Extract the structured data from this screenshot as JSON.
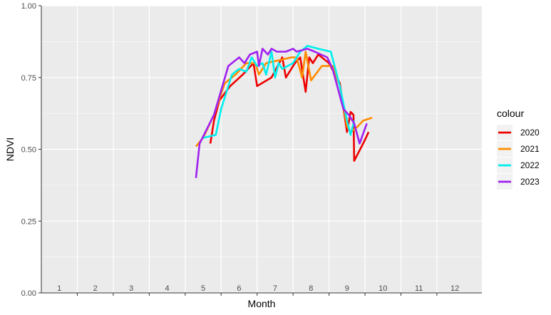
{
  "chart_data": {
    "type": "line",
    "title": "",
    "xlabel": "Month",
    "ylabel": "NDVI",
    "xlim": [
      0.5,
      12.75
    ],
    "ylim": [
      0,
      1
    ],
    "y_ticks": [
      "0.00",
      "0.25",
      "0.50",
      "0.75",
      "1.00"
    ],
    "y_tick_values": [
      0,
      0.25,
      0.5,
      0.75,
      1.0
    ],
    "x_ticks": [
      1,
      2,
      3,
      4,
      5,
      6,
      7,
      8,
      9,
      10,
      11,
      12
    ],
    "x_tick_labels": [
      "1",
      "2",
      "3",
      "4",
      "5",
      "6",
      "7",
      "8",
      "9",
      "10",
      "11",
      "12"
    ],
    "grid": true,
    "legend_title": "colour",
    "legend_position": "right",
    "series": [
      {
        "name": "2020",
        "color": "#ee0000",
        "points": [
          [
            5.2,
            0.52
          ],
          [
            5.3,
            0.6
          ],
          [
            5.45,
            0.67
          ],
          [
            5.75,
            0.72
          ],
          [
            6.1,
            0.76
          ],
          [
            6.4,
            0.8
          ],
          [
            6.5,
            0.72
          ],
          [
            6.9,
            0.75
          ],
          [
            7.2,
            0.82
          ],
          [
            7.3,
            0.75
          ],
          [
            7.55,
            0.8
          ],
          [
            7.7,
            0.82
          ],
          [
            7.85,
            0.7
          ],
          [
            7.95,
            0.82
          ],
          [
            8.05,
            0.8
          ],
          [
            8.2,
            0.83
          ],
          [
            8.5,
            0.8
          ],
          [
            8.8,
            0.73
          ],
          [
            9.0,
            0.56
          ],
          [
            9.1,
            0.63
          ],
          [
            9.18,
            0.62
          ],
          [
            9.2,
            0.46
          ],
          [
            9.45,
            0.52
          ],
          [
            9.6,
            0.56
          ]
        ]
      },
      {
        "name": "2021",
        "color": "#ff8c00",
        "points": [
          [
            4.8,
            0.51
          ],
          [
            5.0,
            0.54
          ],
          [
            5.3,
            0.62
          ],
          [
            5.6,
            0.73
          ],
          [
            5.9,
            0.76
          ],
          [
            6.2,
            0.8
          ],
          [
            6.45,
            0.8
          ],
          [
            6.55,
            0.76
          ],
          [
            6.75,
            0.8
          ],
          [
            7.1,
            0.81
          ],
          [
            7.45,
            0.82
          ],
          [
            7.6,
            0.82
          ],
          [
            7.75,
            0.75
          ],
          [
            7.85,
            0.84
          ],
          [
            8.0,
            0.74
          ],
          [
            8.3,
            0.79
          ],
          [
            8.6,
            0.79
          ],
          [
            8.8,
            0.72
          ],
          [
            9.0,
            0.58
          ],
          [
            9.1,
            0.56
          ],
          [
            9.3,
            0.58
          ],
          [
            9.45,
            0.6
          ],
          [
            9.7,
            0.61
          ]
        ]
      },
      {
        "name": "2022",
        "color": "#00eeee",
        "points": [
          [
            5.0,
            0.54
          ],
          [
            5.35,
            0.55
          ],
          [
            5.5,
            0.64
          ],
          [
            5.8,
            0.76
          ],
          [
            6.0,
            0.78
          ],
          [
            6.2,
            0.77
          ],
          [
            6.35,
            0.82
          ],
          [
            6.5,
            0.79
          ],
          [
            6.65,
            0.8
          ],
          [
            6.75,
            0.76
          ],
          [
            6.9,
            0.84
          ],
          [
            7.0,
            0.75
          ],
          [
            7.1,
            0.8
          ],
          [
            7.2,
            0.78
          ],
          [
            7.5,
            0.8
          ],
          [
            7.7,
            0.84
          ],
          [
            7.9,
            0.86
          ],
          [
            8.2,
            0.85
          ],
          [
            8.55,
            0.84
          ],
          [
            8.8,
            0.72
          ],
          [
            9.0,
            0.6
          ],
          [
            9.1,
            0.55
          ],
          [
            9.2,
            0.6
          ]
        ]
      },
      {
        "name": "2023",
        "color": "#a020f0",
        "points": [
          [
            4.8,
            0.4
          ],
          [
            4.9,
            0.52
          ],
          [
            5.1,
            0.57
          ],
          [
            5.3,
            0.62
          ],
          [
            5.7,
            0.79
          ],
          [
            6.0,
            0.82
          ],
          [
            6.15,
            0.8
          ],
          [
            6.3,
            0.83
          ],
          [
            6.5,
            0.84
          ],
          [
            6.55,
            0.79
          ],
          [
            6.65,
            0.85
          ],
          [
            6.8,
            0.83
          ],
          [
            6.9,
            0.85
          ],
          [
            7.05,
            0.84
          ],
          [
            7.3,
            0.84
          ],
          [
            7.5,
            0.85
          ],
          [
            7.6,
            0.84
          ],
          [
            7.9,
            0.85
          ],
          [
            8.1,
            0.84
          ],
          [
            8.45,
            0.82
          ],
          [
            8.6,
            0.78
          ],
          [
            8.9,
            0.64
          ],
          [
            9.05,
            0.62
          ],
          [
            9.2,
            0.59
          ],
          [
            9.35,
            0.52
          ],
          [
            9.55,
            0.59
          ]
        ]
      }
    ]
  }
}
